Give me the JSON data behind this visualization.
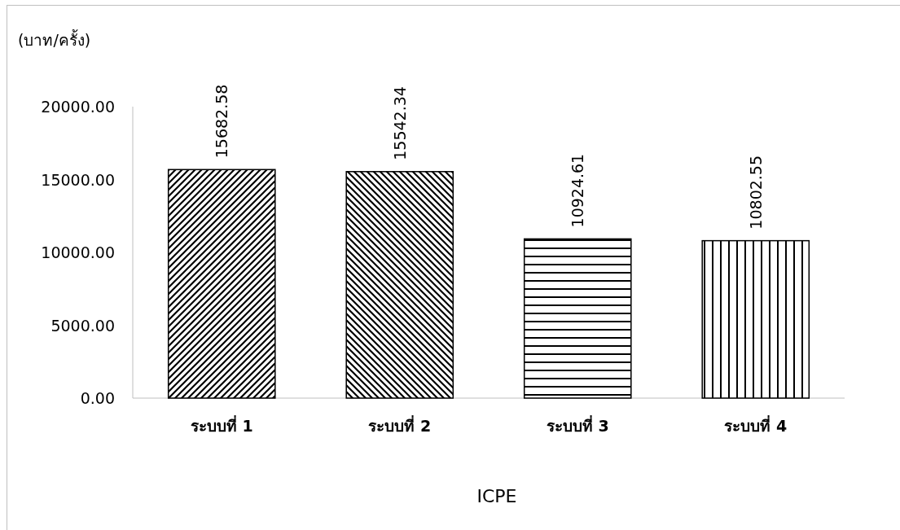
{
  "chart_data": {
    "type": "bar",
    "ylabel": "(บาท/ครั้ง)",
    "xlabel": "ICPE",
    "categories": [
      "ระบบที่ 1",
      "ระบบที่ 2",
      "ระบบที่ 3",
      "ระบบที่ 4"
    ],
    "values": [
      15682.58,
      15542.34,
      10924.61,
      10802.55
    ],
    "value_labels": [
      "15682.58",
      "15542.34",
      "10924.61",
      "10802.55"
    ],
    "color": "#000000",
    "ylim": [
      0,
      20000
    ],
    "yticks": [
      {
        "value": 0,
        "label": "0.00"
      },
      {
        "value": 5000,
        "label": "5000.00"
      },
      {
        "value": 10000,
        "label": "10000.00"
      },
      {
        "value": 15000,
        "label": "15000.00"
      },
      {
        "value": 20000,
        "label": "20000.00"
      }
    ],
    "grid": false
  }
}
